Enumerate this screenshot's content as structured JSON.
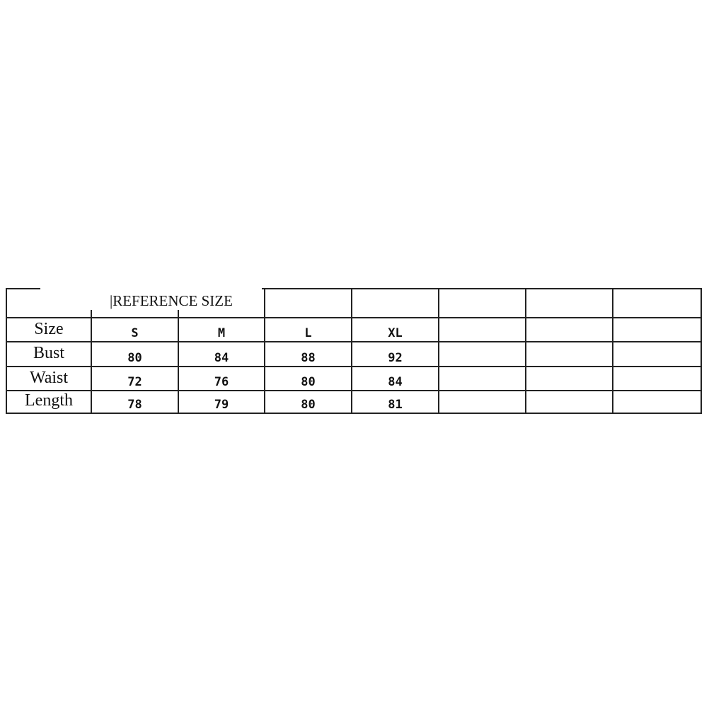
{
  "table": {
    "title": "|REFERENCE SIZE",
    "size_row": {
      "label": "Size",
      "values": [
        "S",
        "M",
        "L",
        "XL"
      ]
    },
    "rows": [
      {
        "label": "Bust",
        "values": [
          "80",
          "84",
          "88",
          "92"
        ]
      },
      {
        "label": "Waist",
        "values": [
          "72",
          "76",
          "80",
          "84"
        ]
      },
      {
        "label": "Length",
        "values": [
          "78",
          "79",
          "80",
          "81"
        ]
      }
    ]
  }
}
